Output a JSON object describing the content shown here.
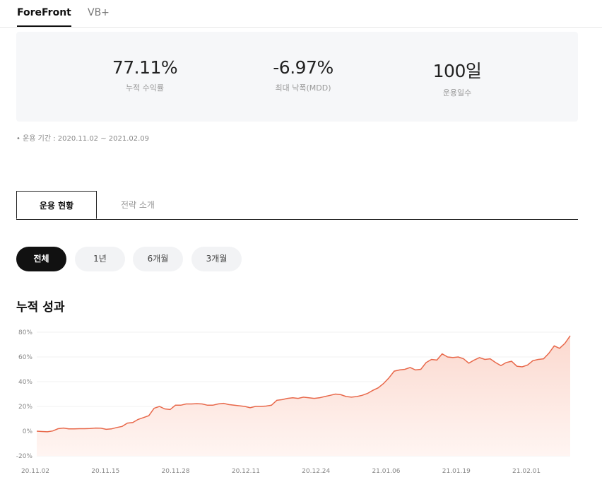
{
  "top_tabs": [
    "ForeFront",
    "VB+"
  ],
  "stats": [
    {
      "value": "77.11%",
      "label": "누적 수익률"
    },
    {
      "value": "-6.97%",
      "label": "최대 낙폭(MDD)"
    },
    {
      "value": "100일",
      "label": "운용일수"
    }
  ],
  "period_note": "• 운용 기간 : 2020.11.02 ~ 2021.02.09",
  "content_tabs": [
    "운용 현황",
    "전략 소개"
  ],
  "filters": [
    "전체",
    "1년",
    "6개월",
    "3개월"
  ],
  "section_title": "누적 성과",
  "colors": {
    "line": "#e8684a",
    "area_top": "#fbd9cf",
    "area_bottom": "#fff5f2",
    "grid": "#f0f0f0"
  },
  "chart_data": {
    "type": "area",
    "title": "누적 성과",
    "ylim": [
      -20,
      80
    ],
    "yticks": [
      "80%",
      "60%",
      "40%",
      "20%",
      "0%",
      "-20%"
    ],
    "ytick_values": [
      80,
      60,
      40,
      20,
      0,
      -20
    ],
    "xticks": [
      "20.11.02",
      "20.11.15",
      "20.11.28",
      "20.12.11",
      "20.12.24",
      "21.01.06",
      "21.01.19",
      "21.02.01"
    ],
    "grid": true,
    "series": [
      {
        "values": [
          0.0,
          -0.3,
          -0.5,
          0.2,
          2.0,
          2.5,
          1.8,
          1.8,
          2.0,
          2.0,
          2.2,
          2.5,
          2.4,
          1.5,
          1.8,
          3.0,
          3.8,
          6.5,
          7.0,
          9.5,
          11.0,
          12.5,
          18.5,
          20.0,
          18.0,
          17.5,
          21.0,
          21.0,
          22.0,
          22.0,
          22.2,
          22.0,
          21.0,
          21.0,
          22.0,
          22.5,
          21.5,
          21.0,
          20.5,
          20.0,
          19.0,
          20.0,
          20.0,
          20.3,
          21.0,
          25.0,
          25.5,
          26.5,
          27.0,
          26.5,
          27.5,
          27.0,
          26.5,
          27.0,
          28.0,
          29.0,
          30.0,
          29.5,
          28.0,
          27.5,
          28.0,
          29.0,
          30.5,
          33.0,
          35.0,
          38.5,
          43.0,
          48.5,
          49.5,
          50.0,
          51.5,
          49.5,
          50.0,
          55.5,
          58.0,
          57.5,
          62.5,
          60.0,
          59.5,
          60.0,
          58.5,
          55.0,
          57.5,
          59.5,
          58.0,
          58.5,
          55.5,
          53.0,
          55.5,
          56.5,
          52.5,
          52.0,
          53.5,
          57.0,
          58.0,
          58.5,
          63.0,
          69.0,
          67.0,
          71.0,
          77.11
        ]
      }
    ]
  }
}
